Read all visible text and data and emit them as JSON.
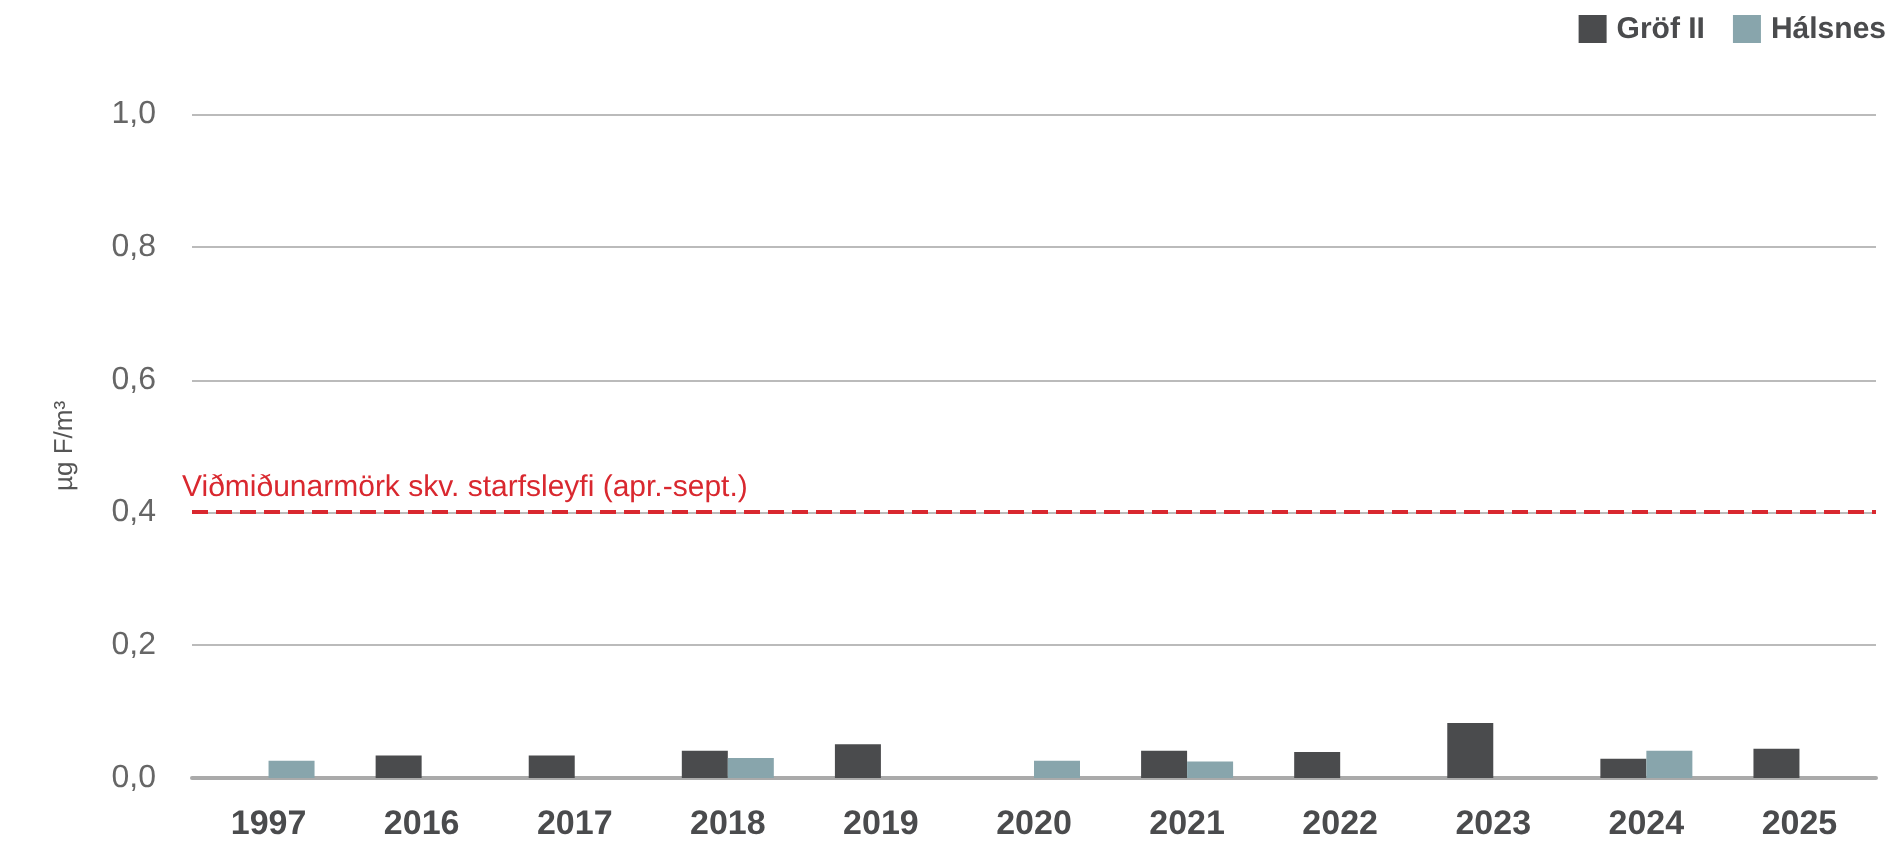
{
  "chart_data": {
    "type": "bar",
    "ylabel": "µg F/m³",
    "categories": [
      "1997",
      "2016",
      "2017",
      "2018",
      "2019",
      "2020",
      "2021",
      "2022",
      "2023",
      "2024",
      "2025"
    ],
    "series": [
      {
        "name": "Gröf II",
        "color": "#4a4b4d",
        "values": [
          null,
          0.034,
          0.034,
          0.041,
          0.051,
          null,
          0.041,
          0.039,
          0.083,
          0.029,
          0.044
        ]
      },
      {
        "name": "Hálsnes",
        "color": "#88a5ac",
        "values": [
          0.026,
          null,
          null,
          0.03,
          null,
          0.026,
          0.025,
          null,
          null,
          0.041,
          null
        ]
      }
    ],
    "ylim": [
      0,
      1
    ],
    "yticks": [
      {
        "value": 0,
        "label": "0,0"
      },
      {
        "value": 0.2,
        "label": "0,2"
      },
      {
        "value": 0.4,
        "label": "0,4"
      },
      {
        "value": 0.6,
        "label": "0,6"
      },
      {
        "value": 0.8,
        "label": "0,8"
      },
      {
        "value": 1,
        "label": "1,0"
      }
    ],
    "ref_lines": [
      {
        "axis": "y",
        "value": 0.4,
        "label": "Viðmiðunarmörk skv. starfsleyfi (apr.-sept.)",
        "color": "#d9282f",
        "line_style": "dashed"
      }
    ],
    "grid": "y",
    "legend": "top right"
  }
}
